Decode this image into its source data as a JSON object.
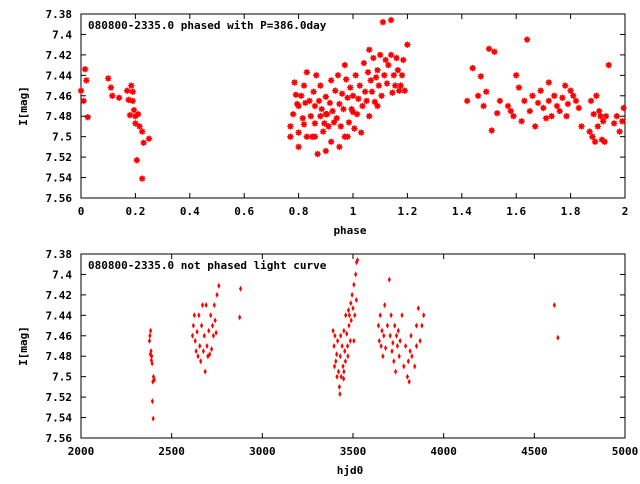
{
  "chart_data": [
    {
      "type": "scatter",
      "title": "080800-2335.0 phased with P=386.0day",
      "xlabel": "phase",
      "ylabel": "I[mag]",
      "xlim": [
        0,
        2
      ],
      "ylim": [
        7.38,
        7.56
      ],
      "y_inverted": true,
      "grid": false,
      "marker": "star",
      "marker_color": "#ff0000",
      "x_ticks": [
        "0",
        "0.2",
        "0.4",
        "0.6",
        "0.8",
        "1",
        "1.2",
        "1.4",
        "1.6",
        "1.8",
        "2"
      ],
      "y_ticks": [
        "7.38",
        "7.4",
        "7.42",
        "7.44",
        "7.46",
        "7.48",
        "7.5",
        "7.52",
        "7.54",
        "7.56"
      ],
      "points": [
        [
          0.0,
          7.455
        ],
        [
          0.01,
          7.465
        ],
        [
          0.015,
          7.434
        ],
        [
          0.02,
          7.445
        ],
        [
          0.025,
          7.481
        ],
        [
          0.1,
          7.443
        ],
        [
          0.11,
          7.452
        ],
        [
          0.115,
          7.46
        ],
        [
          0.14,
          7.462
        ],
        [
          0.17,
          7.455
        ],
        [
          0.175,
          7.464
        ],
        [
          0.18,
          7.479
        ],
        [
          0.185,
          7.45
        ],
        [
          0.19,
          7.456
        ],
        [
          0.19,
          7.465
        ],
        [
          0.195,
          7.474
        ],
        [
          0.2,
          7.48
        ],
        [
          0.2,
          7.487
        ],
        [
          0.21,
          7.478
        ],
        [
          0.205,
          7.523
        ],
        [
          0.215,
          7.49
        ],
        [
          0.225,
          7.495
        ],
        [
          0.23,
          7.506
        ],
        [
          0.225,
          7.541
        ],
        [
          0.25,
          7.502
        ],
        [
          0.77,
          7.49
        ],
        [
          0.77,
          7.5
        ],
        [
          0.78,
          7.478
        ],
        [
          0.785,
          7.447
        ],
        [
          0.79,
          7.459
        ],
        [
          0.795,
          7.468
        ],
        [
          0.8,
          7.496
        ],
        [
          0.8,
          7.51
        ],
        [
          0.81,
          7.46
        ],
        [
          0.815,
          7.482
        ],
        [
          0.82,
          7.45
        ],
        [
          0.825,
          7.467
        ],
        [
          0.83,
          7.5
        ],
        [
          0.83,
          7.437
        ],
        [
          0.84,
          7.465
        ],
        [
          0.845,
          7.48
        ],
        [
          0.85,
          7.5
        ],
        [
          0.855,
          7.456
        ],
        [
          0.86,
          7.47
        ],
        [
          0.86,
          7.487
        ],
        [
          0.865,
          7.44
        ],
        [
          0.87,
          7.517
        ],
        [
          0.875,
          7.465
        ],
        [
          0.88,
          7.48
        ],
        [
          0.885,
          7.473
        ],
        [
          0.89,
          7.495
        ],
        [
          0.895,
          7.487
        ],
        [
          0.9,
          7.461
        ],
        [
          0.9,
          7.514
        ],
        [
          0.905,
          7.478
        ],
        [
          0.91,
          7.49
        ],
        [
          0.915,
          7.467
        ],
        [
          0.92,
          7.505
        ],
        [
          0.925,
          7.475
        ],
        [
          0.93,
          7.486
        ],
        [
          0.935,
          7.455
        ],
        [
          0.94,
          7.482
        ],
        [
          0.945,
          7.44
        ],
        [
          0.95,
          7.468
        ],
        [
          0.95,
          7.51
        ],
        [
          0.955,
          7.49
        ],
        [
          0.96,
          7.458
        ],
        [
          0.965,
          7.473
        ],
        [
          0.97,
          7.5
        ],
        [
          0.975,
          7.444
        ],
        [
          0.98,
          7.462
        ],
        [
          0.985,
          7.486
        ],
        [
          0.99,
          7.452
        ],
        [
          0.995,
          7.473
        ],
        [
          1.0,
          7.46
        ],
        [
          1.005,
          7.492
        ],
        [
          1.01,
          7.44
        ],
        [
          1.015,
          7.478
        ],
        [
          1.02,
          7.463
        ],
        [
          1.025,
          7.45
        ],
        [
          1.03,
          7.496
        ],
        [
          1.035,
          7.47
        ],
        [
          1.04,
          7.428
        ],
        [
          1.045,
          7.456
        ],
        [
          1.05,
          7.465
        ],
        [
          1.055,
          7.437
        ],
        [
          1.06,
          7.48
        ],
        [
          1.065,
          7.445
        ],
        [
          1.07,
          7.456
        ],
        [
          1.075,
          7.423
        ],
        [
          1.08,
          7.466
        ],
        [
          1.085,
          7.442
        ],
        [
          1.09,
          7.435
        ],
        [
          1.095,
          7.45
        ],
        [
          1.1,
          7.42
        ],
        [
          1.105,
          7.46
        ],
        [
          1.11,
          7.388
        ],
        [
          1.115,
          7.44
        ],
        [
          1.12,
          7.425
        ],
        [
          1.125,
          7.448
        ],
        [
          1.13,
          7.43
        ],
        [
          1.14,
          7.386
        ],
        [
          1.14,
          7.42
        ],
        [
          1.145,
          7.457
        ],
        [
          1.15,
          7.44
        ],
        [
          1.155,
          7.45
        ],
        [
          1.16,
          7.423
        ],
        [
          1.165,
          7.435
        ],
        [
          1.17,
          7.455
        ],
        [
          1.175,
          7.45
        ],
        [
          1.18,
          7.44
        ],
        [
          1.185,
          7.425
        ],
        [
          1.19,
          7.455
        ],
        [
          1.2,
          7.41
        ],
        [
          0.8,
          7.47
        ],
        [
          0.86,
          7.5
        ],
        [
          0.88,
          7.45
        ],
        [
          0.92,
          7.445
        ],
        [
          0.98,
          7.5
        ],
        [
          1.0,
          7.476
        ],
        [
          1.06,
          7.415
        ],
        [
          1.09,
          7.47
        ],
        [
          0.82,
          7.488
        ],
        [
          0.9,
          7.478
        ],
        [
          0.97,
          7.43
        ],
        [
          1.42,
          7.465
        ],
        [
          1.44,
          7.433
        ],
        [
          1.46,
          7.46
        ],
        [
          1.47,
          7.441
        ],
        [
          1.48,
          7.47
        ],
        [
          1.49,
          7.456
        ],
        [
          1.5,
          7.414
        ],
        [
          1.51,
          7.494
        ],
        [
          1.52,
          7.417
        ],
        [
          1.53,
          7.477
        ],
        [
          1.54,
          7.465
        ],
        [
          1.57,
          7.47
        ],
        [
          1.58,
          7.475
        ],
        [
          1.59,
          7.48
        ],
        [
          1.6,
          7.44
        ],
        [
          1.61,
          7.452
        ],
        [
          1.62,
          7.485
        ],
        [
          1.63,
          7.465
        ],
        [
          1.64,
          7.405
        ],
        [
          1.65,
          7.475
        ],
        [
          1.66,
          7.46
        ],
        [
          1.67,
          7.49
        ],
        [
          1.68,
          7.467
        ],
        [
          1.69,
          7.455
        ],
        [
          1.7,
          7.472
        ],
        [
          1.71,
          7.482
        ],
        [
          1.72,
          7.447
        ],
        [
          1.72,
          7.465
        ],
        [
          1.73,
          7.48
        ],
        [
          1.74,
          7.46
        ],
        [
          1.75,
          7.47
        ],
        [
          1.76,
          7.475
        ],
        [
          1.77,
          7.462
        ],
        [
          1.78,
          7.45
        ],
        [
          1.785,
          7.48
        ],
        [
          1.79,
          7.468
        ],
        [
          1.8,
          7.455
        ],
        [
          1.81,
          7.46
        ],
        [
          1.82,
          7.465
        ],
        [
          1.83,
          7.472
        ],
        [
          1.84,
          7.49
        ],
        [
          1.87,
          7.495
        ],
        [
          1.875,
          7.465
        ],
        [
          1.88,
          7.5
        ],
        [
          1.885,
          7.478
        ],
        [
          1.89,
          7.505
        ],
        [
          1.895,
          7.46
        ],
        [
          1.9,
          7.49
        ],
        [
          1.905,
          7.475
        ],
        [
          1.91,
          7.48
        ],
        [
          1.915,
          7.503
        ],
        [
          1.92,
          7.485
        ],
        [
          1.925,
          7.505
        ],
        [
          1.93,
          7.48
        ],
        [
          1.94,
          7.43
        ],
        [
          1.96,
          7.487
        ],
        [
          1.97,
          7.48
        ],
        [
          1.98,
          7.495
        ],
        [
          1.99,
          7.485
        ],
        [
          1.995,
          7.472
        ]
      ]
    },
    {
      "type": "scatter",
      "title": "080800-2335.0 not phased light curve",
      "xlabel": "hjd0",
      "ylabel": "I[mag]",
      "xlim": [
        2000,
        5000
      ],
      "ylim": [
        7.38,
        7.56
      ],
      "y_inverted": true,
      "grid": false,
      "marker": "diamond",
      "marker_color": "#ff0000",
      "x_ticks": [
        "2000",
        "2500",
        "3000",
        "3500",
        "4000",
        "4500",
        "5000"
      ],
      "y_ticks": [
        "7.38",
        "7.4",
        "7.42",
        "7.44",
        "7.46",
        "7.48",
        "7.5",
        "7.52",
        "7.54",
        "7.56"
      ],
      "points": [
        [
          2378,
          7.465
        ],
        [
          2380,
          7.46
        ],
        [
          2382,
          7.478
        ],
        [
          2384,
          7.455
        ],
        [
          2386,
          7.475
        ],
        [
          2388,
          7.484
        ],
        [
          2390,
          7.48
        ],
        [
          2392,
          7.487
        ],
        [
          2394,
          7.524
        ],
        [
          2396,
          7.505
        ],
        [
          2398,
          7.541
        ],
        [
          2400,
          7.5
        ],
        [
          2404,
          7.503
        ],
        [
          2615,
          7.46
        ],
        [
          2620,
          7.45
        ],
        [
          2625,
          7.44
        ],
        [
          2630,
          7.465
        ],
        [
          2635,
          7.475
        ],
        [
          2640,
          7.456
        ],
        [
          2645,
          7.48
        ],
        [
          2650,
          7.44
        ],
        [
          2655,
          7.47
        ],
        [
          2660,
          7.485
        ],
        [
          2665,
          7.45
        ],
        [
          2670,
          7.43
        ],
        [
          2675,
          7.475
        ],
        [
          2680,
          7.46
        ],
        [
          2685,
          7.495
        ],
        [
          2690,
          7.43
        ],
        [
          2695,
          7.47
        ],
        [
          2700,
          7.48
        ],
        [
          2705,
          7.455
        ],
        [
          2710,
          7.478
        ],
        [
          2715,
          7.44
        ],
        [
          2720,
          7.473
        ],
        [
          2725,
          7.45
        ],
        [
          2730,
          7.46
        ],
        [
          2735,
          7.43
        ],
        [
          2740,
          7.445
        ],
        [
          2745,
          7.457
        ],
        [
          2750,
          7.42
        ],
        [
          2760,
          7.411
        ],
        [
          2880,
          7.414
        ],
        [
          2875,
          7.442
        ],
        [
          3390,
          7.455
        ],
        [
          3395,
          7.47
        ],
        [
          3398,
          7.49
        ],
        [
          3400,
          7.46
        ],
        [
          3405,
          7.485
        ],
        [
          3410,
          7.478
        ],
        [
          3412,
          7.5
        ],
        [
          3415,
          7.465
        ],
        [
          3420,
          7.495
        ],
        [
          3425,
          7.51
        ],
        [
          3428,
          7.517
        ],
        [
          3430,
          7.48
        ],
        [
          3432,
          7.46
        ],
        [
          3435,
          7.5
        ],
        [
          3440,
          7.47
        ],
        [
          3445,
          7.49
        ],
        [
          3448,
          7.502
        ],
        [
          3450,
          7.455
        ],
        [
          3455,
          7.475
        ],
        [
          3458,
          7.485
        ],
        [
          3460,
          7.44
        ],
        [
          3465,
          7.458
        ],
        [
          3470,
          7.47
        ],
        [
          3472,
          7.48
        ],
        [
          3475,
          7.435
        ],
        [
          3478,
          7.45
        ],
        [
          3480,
          7.44
        ],
        [
          3485,
          7.465
        ],
        [
          3488,
          7.428
        ],
        [
          3490,
          7.445
        ],
        [
          3495,
          7.42
        ],
        [
          3500,
          7.433
        ],
        [
          3505,
          7.41
        ],
        [
          3510,
          7.44
        ],
        [
          3515,
          7.4
        ],
        [
          3518,
          7.425
        ],
        [
          3505,
          7.465
        ],
        [
          3520,
          7.388
        ],
        [
          3525,
          7.386
        ],
        [
          3450,
          7.495
        ],
        [
          3640,
          7.45
        ],
        [
          3645,
          7.465
        ],
        [
          3650,
          7.44
        ],
        [
          3655,
          7.47
        ],
        [
          3660,
          7.455
        ],
        [
          3665,
          7.48
        ],
        [
          3670,
          7.46
        ],
        [
          3675,
          7.43
        ],
        [
          3680,
          7.472
        ],
        [
          3690,
          7.45
        ],
        [
          3700,
          7.405
        ],
        [
          3705,
          7.46
        ],
        [
          3710,
          7.44
        ],
        [
          3715,
          7.475
        ],
        [
          3720,
          7.467
        ],
        [
          3725,
          7.485
        ],
        [
          3730,
          7.45
        ],
        [
          3735,
          7.495
        ],
        [
          3740,
          7.46
        ],
        [
          3745,
          7.47
        ],
        [
          3750,
          7.455
        ],
        [
          3755,
          7.48
        ],
        [
          3760,
          7.465
        ],
        [
          3770,
          7.44
        ],
        [
          3780,
          7.49
        ],
        [
          3790,
          7.47
        ],
        [
          3800,
          7.5
        ],
        [
          3805,
          7.485
        ],
        [
          3810,
          7.505
        ],
        [
          3815,
          7.475
        ],
        [
          3820,
          7.46
        ],
        [
          3825,
          7.48
        ],
        [
          3840,
          7.49
        ],
        [
          3850,
          7.45
        ],
        [
          3860,
          7.433
        ],
        [
          3870,
          7.465
        ],
        [
          3880,
          7.45
        ],
        [
          3890,
          7.44
        ],
        [
          3850,
          7.47
        ],
        [
          4610,
          7.43
        ],
        [
          4630,
          7.462
        ]
      ]
    }
  ]
}
